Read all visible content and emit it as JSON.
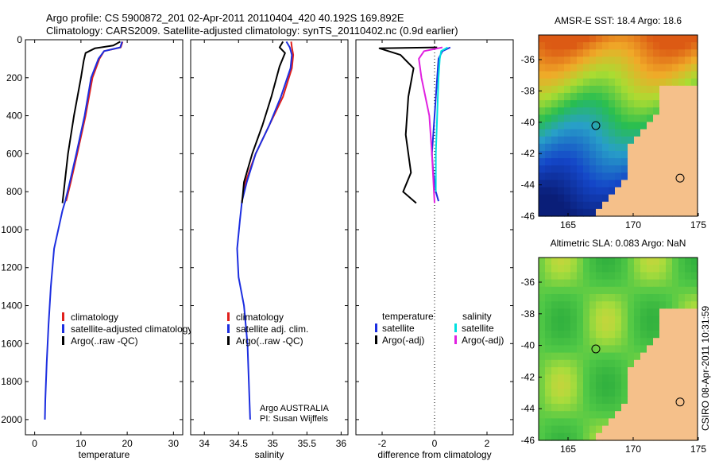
{
  "title_line1": "Argo profile: CS 5900872_201 02-Apr-2011 20110404_420 40.192S 169.892E",
  "title_line2": "Climatology: CARS2009. Satellite-adjusted climatology: synTS_20110402.nc (0.9d earlier)",
  "credit": "Argo AUSTRALIA",
  "pi": "PI: Susan Wijffels",
  "stamp": "CSIRO 08-Apr-2011 10:31:59",
  "colors": {
    "climatology": "#e0201c",
    "satellite": "#1c2ee0",
    "argo": "#000000",
    "sat_sal": "#00e0e0",
    "argo_sal": "#e020e0",
    "land": "#f5c08a"
  },
  "chart_data": [
    {
      "type": "line",
      "xlabel": "temperature",
      "xticks": [
        "0",
        "10",
        "20",
        "30"
      ],
      "yticks": [
        "0",
        "200",
        "400",
        "600",
        "800",
        "1000",
        "1200",
        "1400",
        "1600",
        "1800",
        "2000"
      ],
      "xlim": [
        -2,
        32
      ],
      "ylim": [
        2080,
        0
      ],
      "legend": [
        "climatology",
        "satellite-adjusted climatology",
        "Argo(..raw -QC)"
      ],
      "series": [
        {
          "name": "climatology",
          "color": "#e0201c",
          "x": [
            19,
            18.6,
            15,
            14,
            12.5,
            11,
            9.2,
            7.8,
            6.8
          ],
          "y": [
            10,
            40,
            60,
            100,
            200,
            400,
            600,
            750,
            850
          ]
        },
        {
          "name": "satellite-adjusted climatology",
          "color": "#1c2ee0",
          "x": [
            18.9,
            18.5,
            15,
            13.8,
            12.2,
            10.8,
            9,
            7.6,
            6.6,
            6,
            4.2,
            3.5,
            3,
            2.6,
            2.3,
            2.2
          ],
          "y": [
            10,
            40,
            60,
            100,
            200,
            400,
            600,
            750,
            850,
            900,
            1100,
            1300,
            1500,
            1700,
            1900,
            2000
          ]
        },
        {
          "name": "Argo(..raw -QC)",
          "color": "#000000",
          "x": [
            18.5,
            17,
            13,
            11,
            10.6,
            10,
            8.5,
            7.2,
            6
          ],
          "y": [
            10,
            30,
            45,
            70,
            110,
            200,
            400,
            600,
            860
          ]
        }
      ]
    },
    {
      "type": "line",
      "xlabel": "salinity",
      "xticks": [
        "34",
        "34.5",
        "35",
        "35.5",
        "36"
      ],
      "yticks": [],
      "xlim": [
        33.8,
        36.1
      ],
      "ylim": [
        2080,
        0
      ],
      "legend": [
        "climatology",
        "satellite adj. clim.",
        "Argo(..raw -QC)"
      ],
      "series": [
        {
          "name": "climatology",
          "color": "#e0201c",
          "x": [
            35.27,
            35.28,
            35.3,
            35.28,
            35.15,
            34.95,
            34.75,
            34.6,
            34.55
          ],
          "y": [
            10,
            40,
            80,
            150,
            300,
            450,
            600,
            750,
            850
          ]
        },
        {
          "name": "satellite adj. clim.",
          "color": "#1c2ee0",
          "x": [
            35.2,
            35.25,
            35.28,
            35.26,
            35.12,
            34.95,
            34.75,
            34.62,
            34.55,
            34.52,
            34.48,
            34.5,
            34.58,
            34.63,
            34.65,
            34.67
          ],
          "y": [
            10,
            40,
            80,
            150,
            300,
            450,
            600,
            750,
            850,
            950,
            1100,
            1250,
            1400,
            1600,
            1800,
            2000
          ]
        },
        {
          "name": "Argo(..raw -QC)",
          "color": "#000000",
          "x": [
            35.15,
            35.1,
            35.18,
            35.1,
            34.98,
            34.85,
            34.7,
            34.58,
            34.55
          ],
          "y": [
            10,
            40,
            70,
            140,
            300,
            450,
            600,
            750,
            860
          ]
        }
      ]
    },
    {
      "type": "line",
      "xlabel": "difference from climatology",
      "xticks": [
        "-2",
        "0",
        "2"
      ],
      "yticks": [],
      "xlim": [
        -3,
        3
      ],
      "ylim": [
        2080,
        0
      ],
      "legend_titles": [
        "temperature",
        "salinity"
      ],
      "legend": [
        "satellite",
        "Argo(-adj)",
        "satellite",
        "Argo(-adj)"
      ],
      "series": [
        {
          "name": "satellite",
          "color": "#1c2ee0",
          "x": [
            0.6,
            0.3,
            0.15,
            0.1,
            0,
            -0.1,
            -0.05,
            0.05,
            0.15
          ],
          "y": [
            40,
            60,
            100,
            200,
            400,
            600,
            700,
            800,
            850
          ]
        },
        {
          "name": "Argo(-adj)",
          "color": "#000000",
          "x": [
            0.1,
            -2.1,
            -1.3,
            -0.8,
            -1,
            -1.1,
            -0.9,
            -1.2,
            -0.7
          ],
          "y": [
            40,
            45,
            80,
            150,
            300,
            500,
            700,
            800,
            860
          ]
        },
        {
          "name": "satellite",
          "color": "#00e0e0",
          "x": [
            0.5,
            0.25,
            0.2,
            0.15,
            0.1,
            0.05,
            0.05
          ],
          "y": [
            40,
            60,
            100,
            200,
            400,
            600,
            800
          ]
        },
        {
          "name": "Argo(-adj)",
          "color": "#e020e0",
          "x": [
            0.3,
            -0.4,
            -0.6,
            -0.5,
            -0.2,
            -0.1,
            0
          ],
          "y": [
            40,
            60,
            100,
            200,
            400,
            600,
            860
          ]
        }
      ]
    }
  ],
  "maps": [
    {
      "title": "AMSR-E SST: 18.4 Argo: 18.6",
      "kind": "sst",
      "yticks": [
        "-36",
        "-38",
        "-40",
        "-42",
        "-44",
        "-46"
      ],
      "xticks": [
        "165",
        "170",
        "175"
      ]
    },
    {
      "title": "Altimetric SLA: 0.083 Argo: NaN",
      "kind": "sla",
      "yticks": [
        "-36",
        "-38",
        "-40",
        "-42",
        "-44",
        "-46"
      ],
      "xticks": [
        "165",
        "170",
        "175"
      ]
    }
  ]
}
